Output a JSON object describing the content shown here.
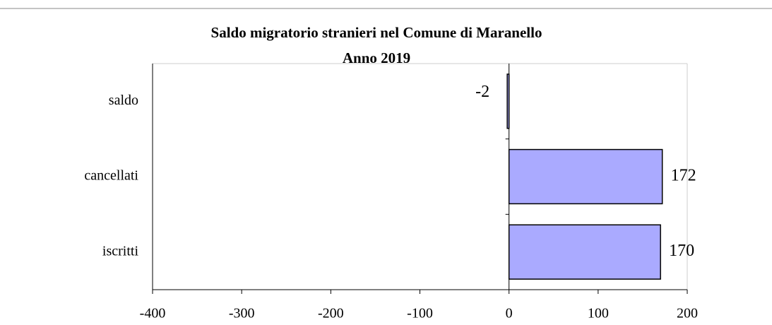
{
  "chart_data": {
    "type": "bar",
    "orientation": "horizontal",
    "title": "Saldo migratorio stranieri nel Comune di Maranello",
    "subtitle": "Anno 2019",
    "categories": [
      "iscritti",
      "cancellati",
      "saldo"
    ],
    "values": [
      170,
      172,
      -2
    ],
    "color": "#aaaaff",
    "xlim": [
      -400,
      200
    ],
    "xticks": [
      -400,
      -300,
      -200,
      -100,
      0,
      100,
      200
    ],
    "grid": false
  }
}
